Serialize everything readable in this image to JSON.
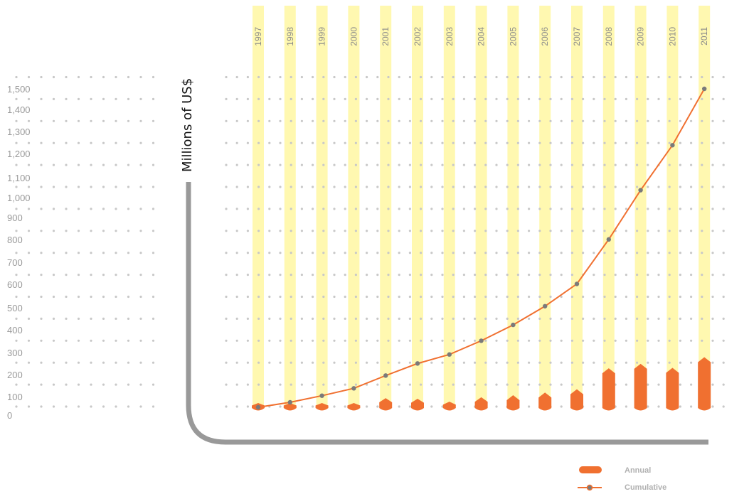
{
  "chart_data": {
    "type": "bar",
    "ylabel": "Millions of US$",
    "ylim": [
      0,
      1500
    ],
    "y_ticks": [
      "0",
      "100",
      "200",
      "300",
      "400",
      "500",
      "600",
      "700",
      "800",
      "900",
      "1,000",
      "1,100",
      "1,200",
      "1,300",
      "1,400",
      "1,500"
    ],
    "categories": [
      "1997",
      "1998",
      "1999",
      "2000",
      "2001",
      "2002",
      "2003",
      "2004",
      "2005",
      "2006",
      "2007",
      "2008",
      "2009",
      "2010",
      "2011"
    ],
    "series": [
      {
        "name": "Annual",
        "type": "bar",
        "values": [
          9,
          21,
          28,
          31,
          54,
          51,
          38,
          58,
          67,
          79,
          94,
          188,
          208,
          190,
          238
        ]
      },
      {
        "name": "Cumulative",
        "type": "line",
        "values": [
          9,
          30,
          58,
          89,
          143,
          194,
          232,
          290,
          357,
          436,
          530,
          718,
          926,
          1116,
          1354
        ]
      }
    ],
    "grid": true,
    "legend": "bottom-right",
    "colors": {
      "annual": "#f07030",
      "cumulative": "#f07030",
      "column_band": "#fff8b0",
      "point": "#7a7a7a",
      "axis": "#999999",
      "grid_dot": "#c8c8c8"
    }
  }
}
